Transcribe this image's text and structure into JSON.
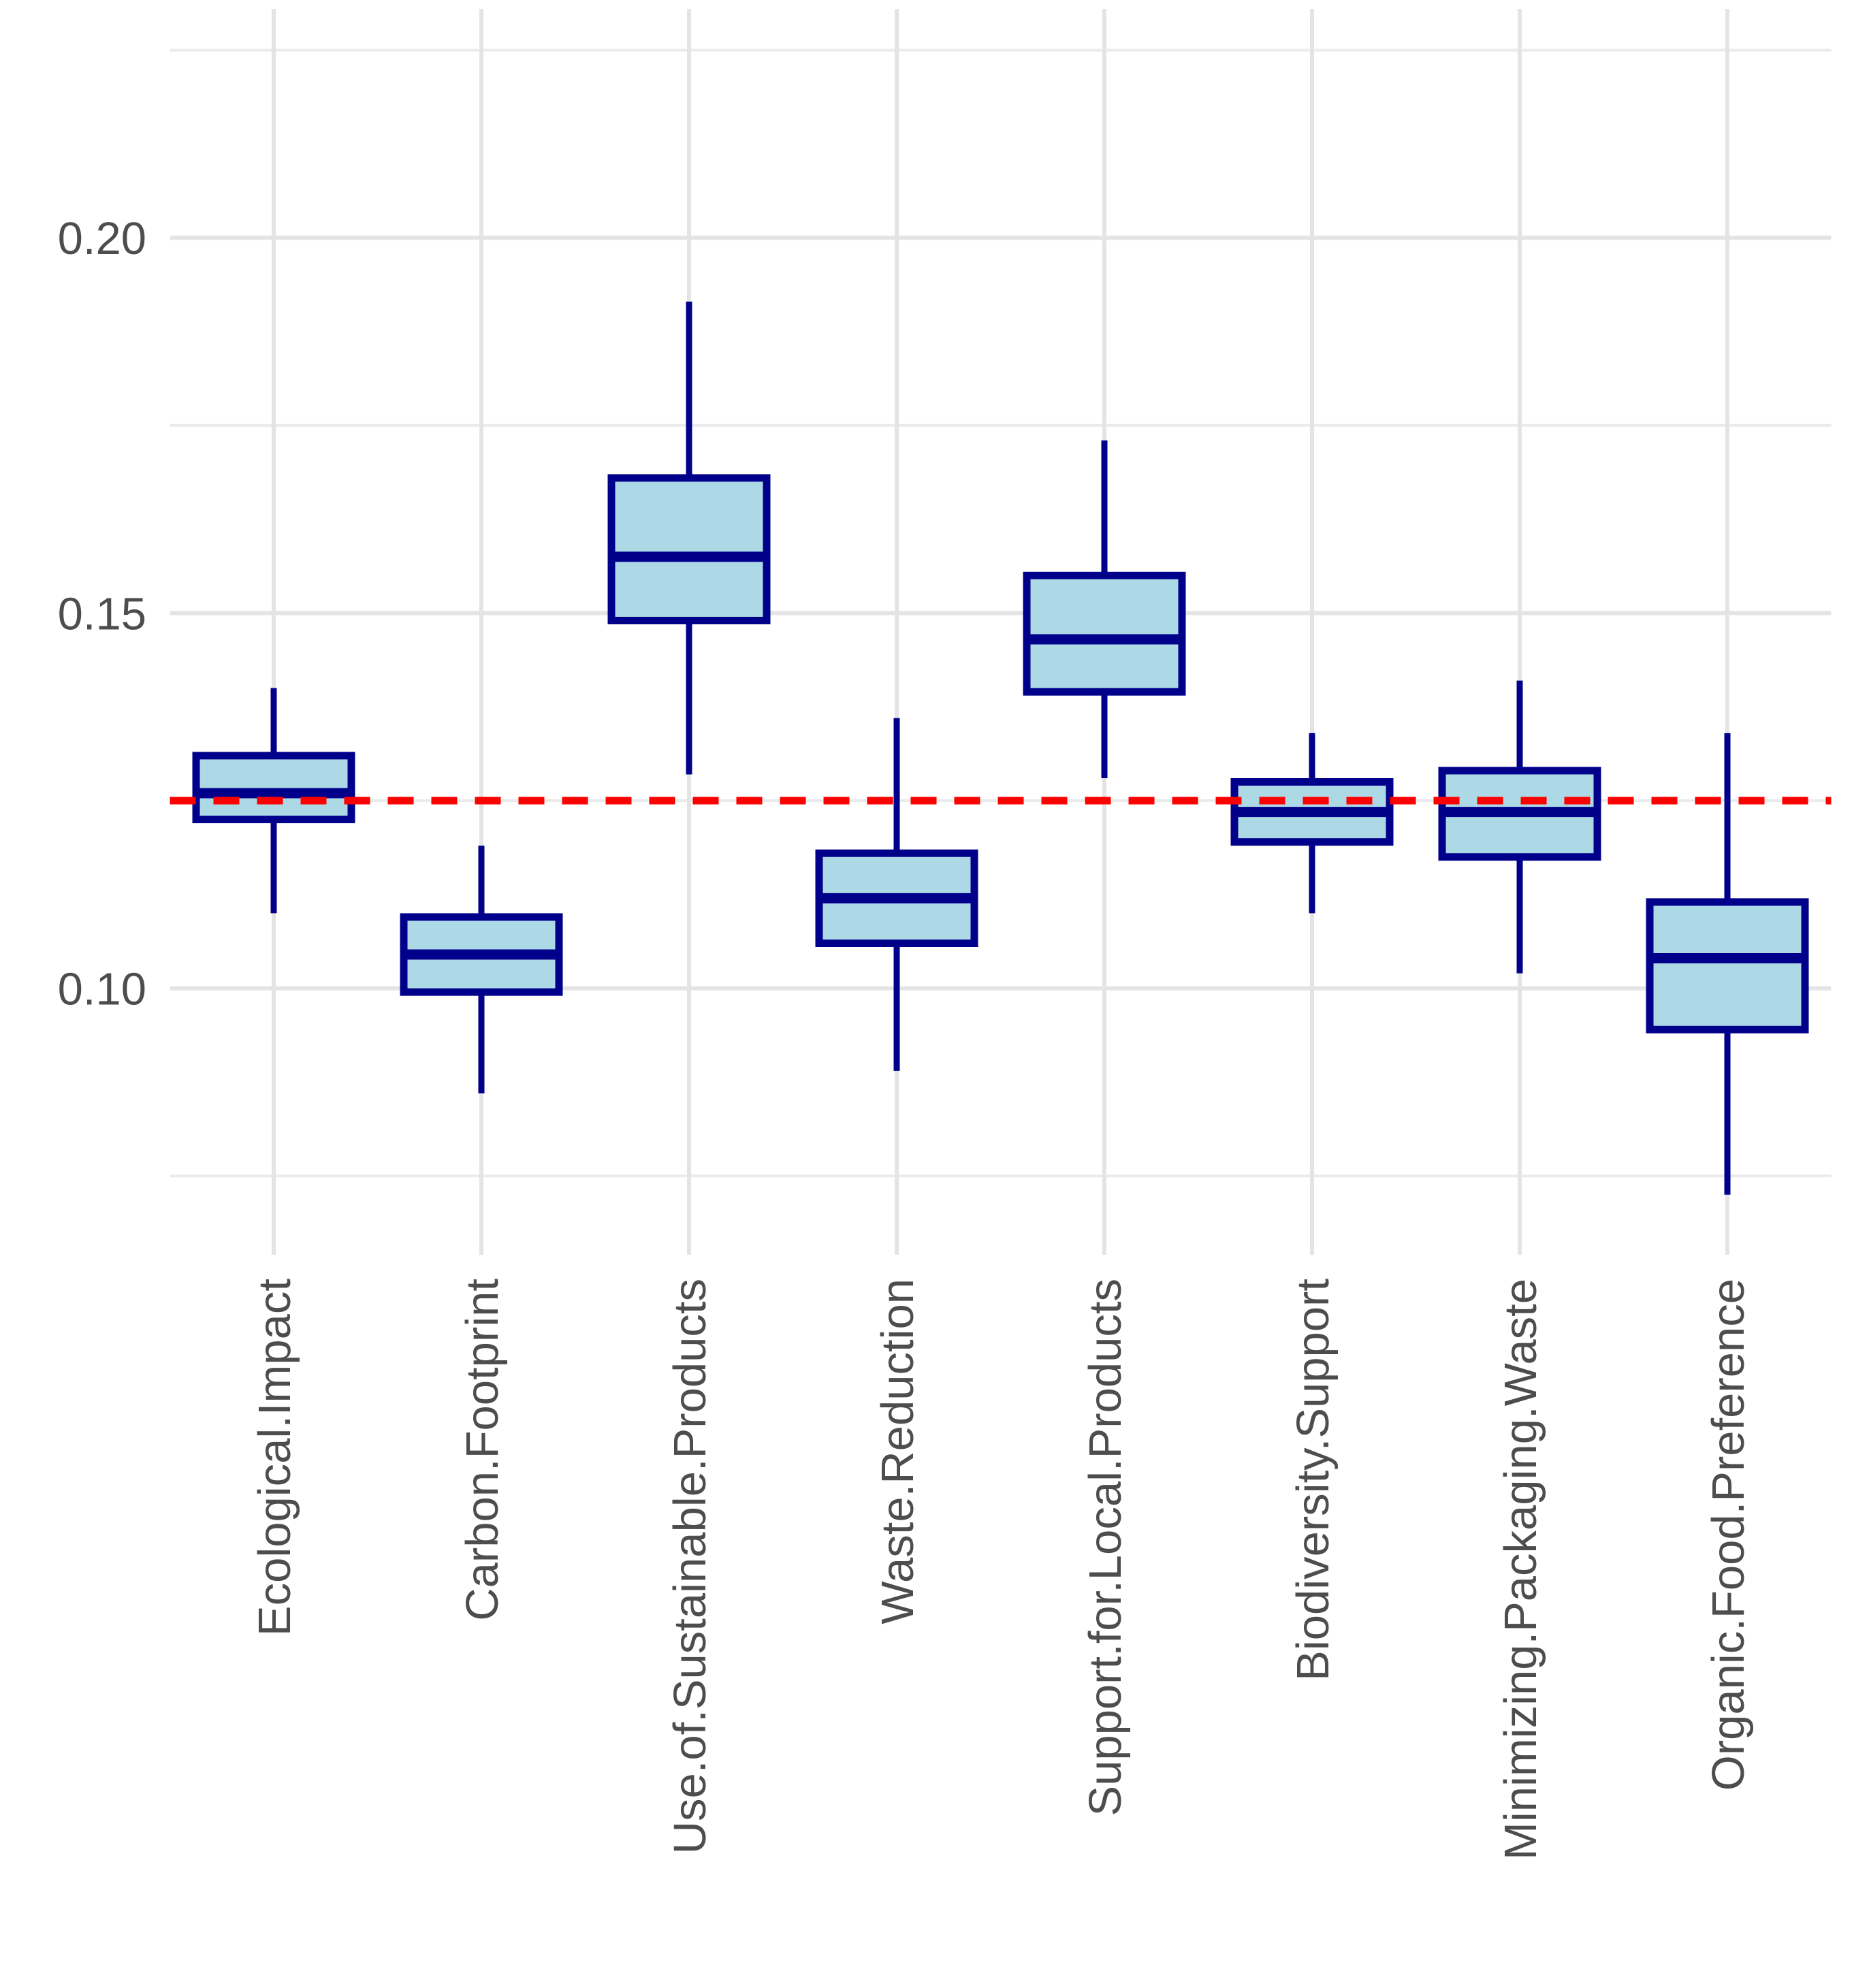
{
  "chart_data": {
    "type": "boxplot",
    "title": "",
    "xlabel": "",
    "ylabel": "",
    "legend_position": "none",
    "grid": true,
    "categories": [
      "Ecological.Impact",
      "Carbon.Footprint",
      "Use.of.Sustainable.Products",
      "Waste.Reduction",
      "Support.for.Local.Products",
      "Biodiversity.Support",
      "Minimizing.Packaging.Waste",
      "Organic.Food.Preference"
    ],
    "boxes": [
      {
        "category": "Ecological.Impact",
        "min": 0.11,
        "q1": 0.1225,
        "median": 0.126,
        "q3": 0.131,
        "max": 0.14
      },
      {
        "category": "Carbon.Footprint",
        "min": 0.086,
        "q1": 0.0995,
        "median": 0.1045,
        "q3": 0.1095,
        "max": 0.119
      },
      {
        "category": "Use.of.Sustainable.Products",
        "min": 0.1285,
        "q1": 0.149,
        "median": 0.1575,
        "q3": 0.168,
        "max": 0.1915
      },
      {
        "category": "Waste.Reduction",
        "min": 0.089,
        "q1": 0.106,
        "median": 0.112,
        "q3": 0.118,
        "max": 0.136
      },
      {
        "category": "Support.for.Local.Products",
        "min": 0.128,
        "q1": 0.1395,
        "median": 0.1465,
        "q3": 0.155,
        "max": 0.173
      },
      {
        "category": "Biodiversity.Support",
        "min": 0.11,
        "q1": 0.1195,
        "median": 0.1235,
        "q3": 0.1275,
        "max": 0.134
      },
      {
        "category": "Minimizing.Packaging.Waste",
        "min": 0.102,
        "q1": 0.1175,
        "median": 0.1235,
        "q3": 0.129,
        "max": 0.141
      },
      {
        "category": "Organic.Food.Preference",
        "min": 0.0725,
        "q1": 0.0945,
        "median": 0.104,
        "q3": 0.1115,
        "max": 0.134
      }
    ],
    "reference_line": {
      "value": 0.125,
      "style": "dashed"
    },
    "y_axis": {
      "range": [
        0.0645,
        0.2305
      ],
      "tick_values": [
        0.1,
        0.15,
        0.2
      ],
      "tick_labels": [
        "0.10",
        "0.15",
        "0.20"
      ],
      "minor_gridlines": [
        0.075,
        0.125,
        0.175,
        0.225
      ]
    }
  },
  "colors": {
    "box_fill": "#ADD8E6",
    "box_border": "#00008B",
    "reference_line": "#FF0000",
    "gridline_major": "#E4E4E4",
    "gridline_minor": "#EBEBEB",
    "axis_text": "#4D4D4D",
    "background": "#FFFFFF"
  }
}
